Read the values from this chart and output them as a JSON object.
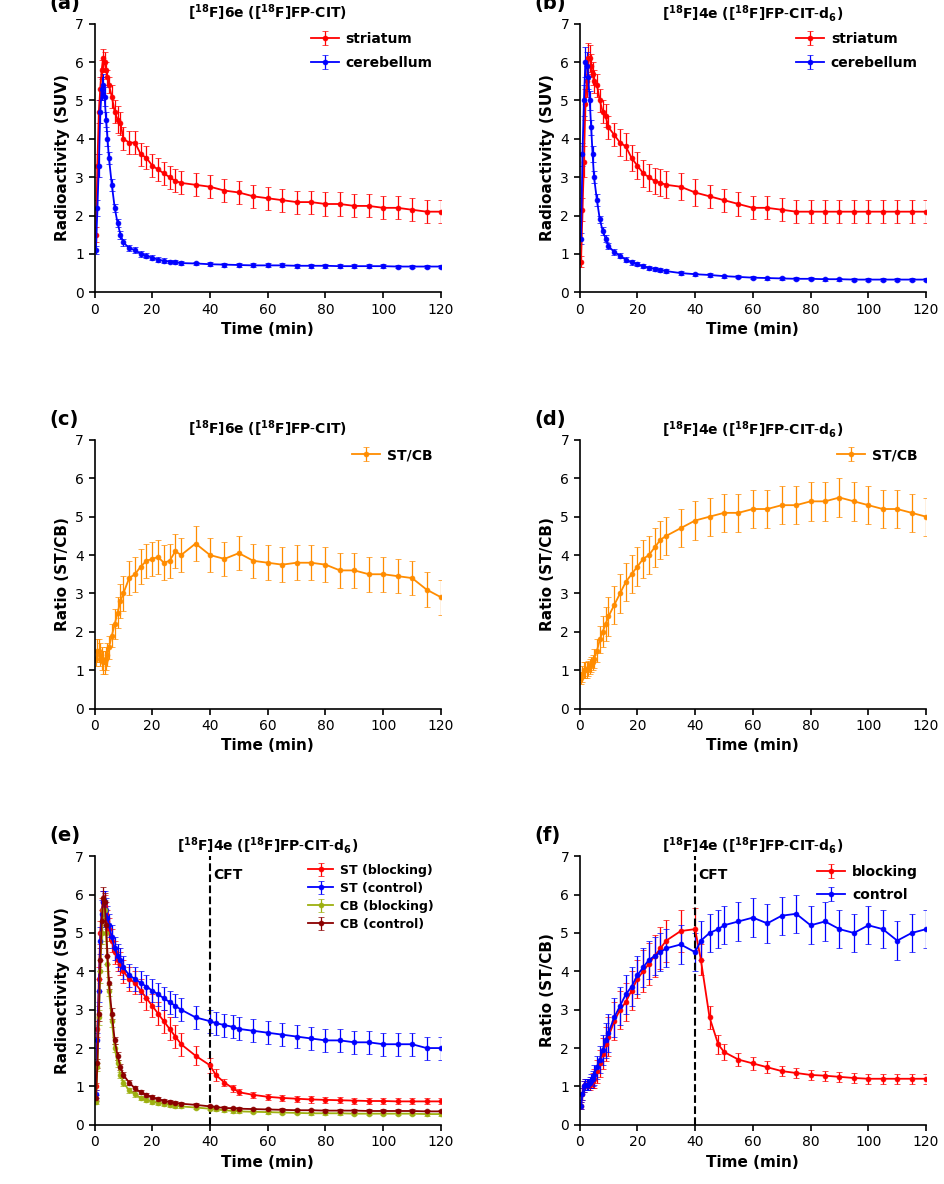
{
  "ylabels": [
    "Radioactivity (SUV)",
    "Radioactivity (SUV)",
    "Ratio (ST/CB)",
    "Ratio (ST/CB)",
    "Radioactivity (SUV)",
    "Ratio (ST/CB)"
  ],
  "xlabel": "Time (min)",
  "red_color": "#FF0000",
  "blue_color": "#0000FF",
  "orange_color": "#FF8C00",
  "yellow_green_color": "#9DB010",
  "dark_red_color": "#8B0000",
  "time_ab": [
    0.5,
    1,
    1.5,
    2,
    2.5,
    3,
    3.5,
    4,
    4.5,
    5,
    6,
    7,
    8,
    9,
    10,
    12,
    14,
    16,
    18,
    20,
    22,
    24,
    26,
    28,
    30,
    35,
    40,
    45,
    50,
    55,
    60,
    65,
    70,
    75,
    80,
    85,
    90,
    95,
    100,
    105,
    110,
    115,
    120
  ],
  "a_striatum": [
    1.5,
    3.3,
    4.7,
    5.3,
    5.8,
    6.1,
    6.0,
    5.8,
    5.6,
    5.4,
    5.1,
    4.7,
    4.5,
    4.4,
    4.0,
    3.9,
    3.9,
    3.6,
    3.5,
    3.3,
    3.2,
    3.1,
    3.0,
    2.9,
    2.85,
    2.8,
    2.75,
    2.65,
    2.6,
    2.5,
    2.45,
    2.4,
    2.35,
    2.35,
    2.3,
    2.3,
    2.25,
    2.25,
    2.2,
    2.2,
    2.15,
    2.1,
    2.1
  ],
  "a_striatum_sd": [
    0.2,
    0.3,
    0.3,
    0.3,
    0.25,
    0.25,
    0.25,
    0.2,
    0.2,
    0.2,
    0.3,
    0.3,
    0.35,
    0.3,
    0.3,
    0.3,
    0.3,
    0.3,
    0.3,
    0.3,
    0.3,
    0.3,
    0.3,
    0.3,
    0.3,
    0.3,
    0.3,
    0.3,
    0.3,
    0.3,
    0.3,
    0.3,
    0.3,
    0.3,
    0.3,
    0.3,
    0.3,
    0.3,
    0.3,
    0.3,
    0.3,
    0.3,
    0.3
  ],
  "a_cerebellum": [
    1.1,
    2.2,
    3.3,
    4.7,
    5.3,
    5.4,
    5.1,
    4.5,
    4.0,
    3.5,
    2.8,
    2.2,
    1.8,
    1.5,
    1.3,
    1.15,
    1.1,
    1.0,
    0.95,
    0.9,
    0.85,
    0.82,
    0.8,
    0.78,
    0.76,
    0.75,
    0.73,
    0.72,
    0.71,
    0.7,
    0.7,
    0.7,
    0.69,
    0.69,
    0.69,
    0.68,
    0.68,
    0.68,
    0.68,
    0.67,
    0.67,
    0.67,
    0.67
  ],
  "a_cerebellum_sd": [
    0.1,
    0.2,
    0.3,
    0.3,
    0.3,
    0.3,
    0.25,
    0.2,
    0.2,
    0.15,
    0.15,
    0.1,
    0.1,
    0.1,
    0.1,
    0.08,
    0.08,
    0.07,
    0.07,
    0.06,
    0.06,
    0.06,
    0.05,
    0.05,
    0.05,
    0.05,
    0.05,
    0.05,
    0.05,
    0.05,
    0.05,
    0.05,
    0.05,
    0.05,
    0.05,
    0.05,
    0.05,
    0.05,
    0.05,
    0.05,
    0.05,
    0.05,
    0.05
  ],
  "b_striatum": [
    0.8,
    2.15,
    3.4,
    4.9,
    5.5,
    6.1,
    6.1,
    5.9,
    5.7,
    5.5,
    5.4,
    5.0,
    4.7,
    4.6,
    4.3,
    4.1,
    3.9,
    3.8,
    3.5,
    3.3,
    3.1,
    3.0,
    2.9,
    2.85,
    2.8,
    2.75,
    2.6,
    2.5,
    2.4,
    2.3,
    2.2,
    2.2,
    2.15,
    2.1,
    2.1,
    2.1,
    2.1,
    2.1,
    2.1,
    2.1,
    2.1,
    2.1,
    2.1
  ],
  "b_striatum_sd": [
    0.15,
    0.3,
    0.4,
    0.4,
    0.4,
    0.4,
    0.35,
    0.3,
    0.3,
    0.3,
    0.3,
    0.3,
    0.3,
    0.3,
    0.3,
    0.3,
    0.35,
    0.35,
    0.35,
    0.35,
    0.35,
    0.35,
    0.35,
    0.35,
    0.35,
    0.35,
    0.35,
    0.3,
    0.3,
    0.3,
    0.3,
    0.3,
    0.3,
    0.3,
    0.3,
    0.3,
    0.3,
    0.3,
    0.3,
    0.3,
    0.3,
    0.3,
    0.3
  ],
  "b_cerebellum": [
    1.4,
    3.6,
    5.0,
    6.0,
    5.9,
    5.6,
    5.0,
    4.3,
    3.6,
    3.0,
    2.4,
    1.9,
    1.6,
    1.4,
    1.2,
    1.05,
    0.95,
    0.85,
    0.78,
    0.73,
    0.68,
    0.64,
    0.61,
    0.58,
    0.55,
    0.5,
    0.47,
    0.45,
    0.42,
    0.4,
    0.38,
    0.37,
    0.36,
    0.35,
    0.35,
    0.34,
    0.34,
    0.33,
    0.33,
    0.33,
    0.33,
    0.33,
    0.33
  ],
  "b_cerebellum_sd": [
    0.15,
    0.3,
    0.4,
    0.4,
    0.35,
    0.3,
    0.25,
    0.2,
    0.2,
    0.15,
    0.15,
    0.1,
    0.1,
    0.1,
    0.08,
    0.08,
    0.07,
    0.06,
    0.06,
    0.05,
    0.05,
    0.05,
    0.05,
    0.05,
    0.05,
    0.05,
    0.04,
    0.04,
    0.04,
    0.04,
    0.04,
    0.04,
    0.04,
    0.04,
    0.04,
    0.04,
    0.04,
    0.04,
    0.04,
    0.04,
    0.04,
    0.04,
    0.04
  ],
  "time_c": [
    0.5,
    1,
    1.5,
    2,
    2.5,
    3,
    3.5,
    4,
    4.5,
    5,
    6,
    7,
    8,
    9,
    10,
    12,
    14,
    16,
    18,
    20,
    22,
    24,
    26,
    28,
    30,
    35,
    40,
    45,
    50,
    55,
    60,
    65,
    70,
    75,
    80,
    85,
    90,
    95,
    100,
    105,
    110,
    115,
    120
  ],
  "c_stcb": [
    1.3,
    1.5,
    1.5,
    1.4,
    1.3,
    1.2,
    1.2,
    1.3,
    1.4,
    1.6,
    1.9,
    2.2,
    2.5,
    2.8,
    3.0,
    3.4,
    3.5,
    3.7,
    3.85,
    3.9,
    3.95,
    3.8,
    3.85,
    4.1,
    4.0,
    4.3,
    4.0,
    3.9,
    4.05,
    3.85,
    3.8,
    3.75,
    3.8,
    3.8,
    3.75,
    3.6,
    3.6,
    3.5,
    3.5,
    3.45,
    3.4,
    3.1,
    2.9
  ],
  "c_stcb_sd": [
    0.2,
    0.3,
    0.3,
    0.3,
    0.3,
    0.3,
    0.3,
    0.3,
    0.3,
    0.3,
    0.3,
    0.4,
    0.4,
    0.45,
    0.45,
    0.45,
    0.45,
    0.45,
    0.45,
    0.45,
    0.45,
    0.45,
    0.45,
    0.45,
    0.45,
    0.45,
    0.45,
    0.45,
    0.45,
    0.45,
    0.45,
    0.45,
    0.45,
    0.45,
    0.45,
    0.45,
    0.45,
    0.45,
    0.45,
    0.45,
    0.45,
    0.45,
    0.45
  ],
  "time_d": [
    0.5,
    1,
    1.5,
    2,
    2.5,
    3,
    3.5,
    4,
    4.5,
    5,
    6,
    7,
    8,
    9,
    10,
    12,
    14,
    16,
    18,
    20,
    22,
    24,
    26,
    28,
    30,
    35,
    40,
    45,
    50,
    55,
    60,
    65,
    70,
    75,
    80,
    85,
    90,
    95,
    100,
    105,
    110,
    115,
    120
  ],
  "d_stcb": [
    0.8,
    0.9,
    1.0,
    1.0,
    1.0,
    1.05,
    1.1,
    1.15,
    1.2,
    1.3,
    1.5,
    1.8,
    2.0,
    2.2,
    2.4,
    2.7,
    3.0,
    3.3,
    3.5,
    3.7,
    3.9,
    4.0,
    4.2,
    4.4,
    4.5,
    4.7,
    4.9,
    5.0,
    5.1,
    5.1,
    5.2,
    5.2,
    5.3,
    5.3,
    5.4,
    5.4,
    5.5,
    5.4,
    5.3,
    5.2,
    5.2,
    5.1,
    5.0
  ],
  "d_stcb_sd": [
    0.15,
    0.2,
    0.2,
    0.2,
    0.2,
    0.2,
    0.2,
    0.2,
    0.2,
    0.25,
    0.3,
    0.35,
    0.4,
    0.45,
    0.5,
    0.5,
    0.5,
    0.5,
    0.5,
    0.5,
    0.5,
    0.5,
    0.5,
    0.5,
    0.5,
    0.5,
    0.5,
    0.5,
    0.5,
    0.5,
    0.5,
    0.5,
    0.5,
    0.5,
    0.5,
    0.5,
    0.5,
    0.5,
    0.5,
    0.5,
    0.5,
    0.5,
    0.5
  ],
  "time_e": [
    0.5,
    1,
    1.5,
    2,
    2.5,
    3,
    3.5,
    4,
    4.5,
    5,
    6,
    7,
    8,
    9,
    10,
    12,
    14,
    16,
    18,
    20,
    22,
    24,
    26,
    28,
    30,
    35,
    40,
    42,
    45,
    48,
    50,
    55,
    60,
    65,
    70,
    75,
    80,
    85,
    90,
    95,
    100,
    105,
    110,
    115,
    120
  ],
  "e_st_blocking": [
    1.0,
    2.5,
    3.8,
    5.0,
    5.6,
    5.8,
    5.7,
    5.5,
    5.3,
    5.1,
    4.8,
    4.5,
    4.3,
    4.2,
    4.0,
    3.8,
    3.7,
    3.5,
    3.3,
    3.1,
    2.9,
    2.7,
    2.5,
    2.3,
    2.1,
    1.8,
    1.55,
    1.3,
    1.1,
    0.95,
    0.85,
    0.78,
    0.73,
    0.7,
    0.68,
    0.66,
    0.65,
    0.64,
    0.63,
    0.62,
    0.62,
    0.61,
    0.61,
    0.61,
    0.61
  ],
  "e_st_blocking_sd": [
    0.1,
    0.2,
    0.3,
    0.3,
    0.3,
    0.3,
    0.3,
    0.3,
    0.3,
    0.3,
    0.3,
    0.3,
    0.3,
    0.3,
    0.3,
    0.3,
    0.3,
    0.3,
    0.3,
    0.3,
    0.3,
    0.3,
    0.3,
    0.3,
    0.3,
    0.25,
    0.2,
    0.15,
    0.1,
    0.1,
    0.08,
    0.08,
    0.08,
    0.08,
    0.08,
    0.08,
    0.08,
    0.08,
    0.08,
    0.08,
    0.08,
    0.08,
    0.08,
    0.08,
    0.08
  ],
  "e_st_control": [
    0.8,
    2.2,
    3.5,
    4.8,
    5.5,
    5.8,
    5.8,
    5.6,
    5.4,
    5.2,
    4.9,
    4.6,
    4.4,
    4.3,
    4.1,
    3.9,
    3.8,
    3.7,
    3.6,
    3.5,
    3.4,
    3.3,
    3.2,
    3.1,
    3.0,
    2.8,
    2.7,
    2.65,
    2.6,
    2.55,
    2.5,
    2.45,
    2.4,
    2.35,
    2.3,
    2.25,
    2.2,
    2.2,
    2.15,
    2.15,
    2.1,
    2.1,
    2.1,
    2.0,
    2.0
  ],
  "e_st_control_sd": [
    0.1,
    0.2,
    0.3,
    0.35,
    0.35,
    0.3,
    0.3,
    0.3,
    0.3,
    0.3,
    0.3,
    0.3,
    0.3,
    0.3,
    0.3,
    0.3,
    0.3,
    0.3,
    0.3,
    0.3,
    0.3,
    0.3,
    0.3,
    0.3,
    0.3,
    0.3,
    0.3,
    0.3,
    0.3,
    0.3,
    0.3,
    0.3,
    0.3,
    0.3,
    0.3,
    0.3,
    0.3,
    0.3,
    0.3,
    0.3,
    0.3,
    0.3,
    0.3,
    0.3,
    0.3
  ],
  "e_cb_blocking": [
    0.6,
    1.5,
    2.8,
    4.0,
    5.0,
    5.6,
    5.6,
    5.0,
    4.2,
    3.5,
    2.7,
    2.0,
    1.6,
    1.3,
    1.1,
    0.9,
    0.8,
    0.7,
    0.65,
    0.6,
    0.57,
    0.55,
    0.52,
    0.5,
    0.48,
    0.45,
    0.42,
    0.4,
    0.38,
    0.36,
    0.35,
    0.34,
    0.33,
    0.32,
    0.31,
    0.3,
    0.3,
    0.3,
    0.29,
    0.29,
    0.29,
    0.29,
    0.29,
    0.28,
    0.28
  ],
  "e_cb_blocking_sd": [
    0.05,
    0.1,
    0.2,
    0.3,
    0.3,
    0.3,
    0.25,
    0.2,
    0.2,
    0.15,
    0.15,
    0.1,
    0.1,
    0.08,
    0.08,
    0.07,
    0.07,
    0.06,
    0.05,
    0.05,
    0.05,
    0.05,
    0.05,
    0.05,
    0.05,
    0.04,
    0.04,
    0.04,
    0.04,
    0.04,
    0.04,
    0.04,
    0.04,
    0.04,
    0.04,
    0.04,
    0.04,
    0.04,
    0.04,
    0.04,
    0.04,
    0.04,
    0.04,
    0.04,
    0.04
  ],
  "e_cb_control": [
    0.7,
    1.6,
    2.9,
    4.3,
    5.3,
    5.9,
    5.8,
    5.2,
    4.4,
    3.7,
    2.9,
    2.2,
    1.8,
    1.5,
    1.3,
    1.1,
    0.95,
    0.85,
    0.78,
    0.72,
    0.67,
    0.63,
    0.59,
    0.57,
    0.55,
    0.52,
    0.48,
    0.46,
    0.44,
    0.43,
    0.42,
    0.41,
    0.4,
    0.39,
    0.38,
    0.38,
    0.37,
    0.37,
    0.37,
    0.36,
    0.36,
    0.36,
    0.36,
    0.35,
    0.35
  ],
  "e_cb_control_sd": [
    0.07,
    0.12,
    0.2,
    0.3,
    0.3,
    0.3,
    0.25,
    0.2,
    0.2,
    0.15,
    0.15,
    0.1,
    0.1,
    0.08,
    0.08,
    0.07,
    0.07,
    0.06,
    0.06,
    0.05,
    0.05,
    0.05,
    0.05,
    0.05,
    0.05,
    0.05,
    0.04,
    0.04,
    0.04,
    0.04,
    0.04,
    0.04,
    0.04,
    0.04,
    0.04,
    0.04,
    0.04,
    0.04,
    0.04,
    0.04,
    0.04,
    0.04,
    0.04,
    0.04,
    0.04
  ],
  "f_blocking": [
    0.5,
    0.8,
    1.0,
    1.05,
    1.05,
    1.05,
    1.05,
    1.1,
    1.15,
    1.2,
    1.4,
    1.6,
    1.85,
    2.1,
    2.3,
    2.7,
    3.0,
    3.2,
    3.5,
    3.8,
    4.0,
    4.2,
    4.4,
    4.6,
    4.8,
    5.05,
    5.1,
    4.3,
    2.8,
    2.1,
    1.9,
    1.7,
    1.6,
    1.5,
    1.4,
    1.35,
    1.3,
    1.28,
    1.25,
    1.22,
    1.2,
    1.2,
    1.2,
    1.2,
    1.2
  ],
  "f_blocking_sd": [
    0.1,
    0.15,
    0.15,
    0.15,
    0.15,
    0.15,
    0.15,
    0.15,
    0.2,
    0.25,
    0.3,
    0.35,
    0.4,
    0.45,
    0.5,
    0.5,
    0.5,
    0.5,
    0.5,
    0.5,
    0.55,
    0.55,
    0.55,
    0.55,
    0.55,
    0.55,
    0.55,
    0.4,
    0.3,
    0.25,
    0.2,
    0.18,
    0.16,
    0.15,
    0.14,
    0.13,
    0.13,
    0.13,
    0.13,
    0.13,
    0.13,
    0.13,
    0.13,
    0.13,
    0.13
  ],
  "f_control": [
    0.5,
    0.8,
    1.0,
    1.05,
    1.05,
    1.05,
    1.1,
    1.15,
    1.2,
    1.3,
    1.5,
    1.7,
    1.95,
    2.2,
    2.4,
    2.8,
    3.1,
    3.4,
    3.6,
    3.9,
    4.1,
    4.3,
    4.4,
    4.5,
    4.6,
    4.7,
    4.5,
    4.8,
    5.0,
    5.1,
    5.2,
    5.3,
    5.4,
    5.25,
    5.45,
    5.5,
    5.2,
    5.3,
    5.1,
    5.0,
    5.2,
    5.1,
    4.8,
    5.0,
    5.1
  ],
  "f_control_sd": [
    0.1,
    0.15,
    0.15,
    0.15,
    0.15,
    0.15,
    0.15,
    0.18,
    0.2,
    0.25,
    0.3,
    0.35,
    0.4,
    0.45,
    0.5,
    0.5,
    0.5,
    0.5,
    0.5,
    0.5,
    0.5,
    0.5,
    0.5,
    0.5,
    0.5,
    0.5,
    0.5,
    0.5,
    0.5,
    0.5,
    0.5,
    0.5,
    0.5,
    0.5,
    0.5,
    0.5,
    0.5,
    0.5,
    0.5,
    0.5,
    0.5,
    0.5,
    0.5,
    0.5,
    0.5
  ]
}
